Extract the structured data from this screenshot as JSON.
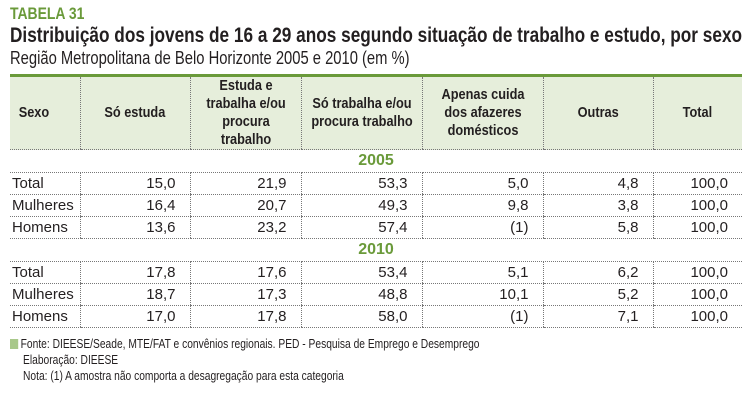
{
  "label": "TABELA 31",
  "title": "Distribuição dos jovens de 16 a 29 anos segundo situação de trabalho e estudo, por sexo",
  "subtitle": "Região Metropolitana de Belo Horizonte 2005 e 2010 (em %)",
  "headers": [
    "Sexo",
    "Só estuda",
    "Estuda e trabalha e/ou procura trabalho",
    "Só trabalha e/ou procura trabalho",
    "Apenas cuida dos afazeres domésticos",
    "Outras",
    "Total"
  ],
  "groups": [
    {
      "year": "2005",
      "rows": [
        [
          "Total",
          "15,0",
          "21,9",
          "53,3",
          "5,0",
          "4,8",
          "100,0"
        ],
        [
          "Mulheres",
          "16,4",
          "20,7",
          "49,3",
          "9,8",
          "3,8",
          "100,0"
        ],
        [
          "Homens",
          "13,6",
          "23,2",
          "57,4",
          "(1)",
          "5,8",
          "100,0"
        ]
      ]
    },
    {
      "year": "2010",
      "rows": [
        [
          "Total",
          "17,8",
          "17,6",
          "53,4",
          "5,1",
          "6,2",
          "100,0"
        ],
        [
          "Mulheres",
          "18,7",
          "17,3",
          "48,8",
          "10,1",
          "5,2",
          "100,0"
        ],
        [
          "Homens",
          "17,0",
          "17,8",
          "58,0",
          "(1)",
          "7,1",
          "100,0"
        ]
      ]
    }
  ],
  "footer": {
    "source": "Fonte: DIEESE/Seade, MTE/FAT e convênios regionais. PED - Pesquisa de Emprego e Desemprego",
    "elab": "Elaboração: DIEESE",
    "note": "Nota: (1) A amostra não comporta a desagregação para esta categoria"
  },
  "colors": {
    "accent": "#6a9a3a",
    "header_bg": "#e6eedb"
  }
}
